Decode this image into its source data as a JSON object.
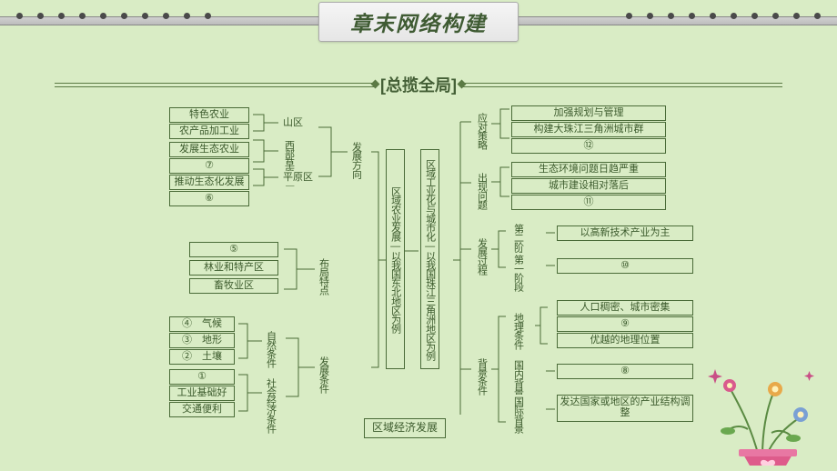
{
  "colors": {
    "bg": "#d9ecc5",
    "line": "#4a6b38",
    "text": "#3b5a2c",
    "title_text": "#3f5b33",
    "header_bar_top": "#d0d0d0",
    "header_bar_bot": "#bcbcbc",
    "dot": "#4a4a4a",
    "titlebox_top": "#f5f5f5",
    "titlebox_bot": "#e6e6e6"
  },
  "header": {
    "title": "章末网络构建",
    "subtitle": "[总揽全局]",
    "dots_per_side": 10
  },
  "center": {
    "bottom": "区域经济发展",
    "left": "区域农业发展—以我国东北地区为例",
    "right": "区域工业化与城市化—以我国珠江三角洲地区为例"
  },
  "left": {
    "l1_dev_dir": "发展方向",
    "l1_layout": "布局特点",
    "l1_dev_cond": "发展条件",
    "regions": {
      "mountain": "山区",
      "west_grass": "西部草原区",
      "plain": "平原区"
    },
    "dev_dir_items": [
      "特色农业",
      "农产品加工业",
      "发展生态农业",
      "⑦",
      "推动生态化发展",
      "⑥"
    ],
    "layout_items": [
      "⑤",
      "林业和特产区",
      "畜牧业区"
    ],
    "cond_cats": {
      "nature": "自然条件",
      "society": "社会经济条件"
    },
    "cond_items": {
      "nature": [
        "④　气候",
        "③　地形",
        "②　土壤"
      ],
      "society": [
        "①",
        "工业基础好",
        "交通便利"
      ]
    }
  },
  "right": {
    "l1_strategy": "应对策略",
    "l1_problem": "出现问题",
    "l1_process": "发展过程",
    "l1_bgcond": "背景条件",
    "strategy_items": [
      "加强规划与管理",
      "构建大珠江三角洲城市群",
      "⑫"
    ],
    "problem_items": [
      "生态环境问题日趋严重",
      "城市建设相对落后",
      "⑪"
    ],
    "process_items": {
      "p2": "第二阶段",
      "p2v": "以高新技术产业为主",
      "p1": "第一阶段",
      "p1v": "⑩"
    },
    "bg_cats": {
      "geo": "地理条件",
      "dom": "国内背景",
      "intl": "国际背景"
    },
    "bg_items": {
      "geo": [
        "人口稠密、城市密集",
        "⑨",
        "优越的地理位置"
      ],
      "dom": [
        "⑧"
      ],
      "intl": [
        "发达国家或地区的产业结构调整"
      ]
    }
  },
  "flower": {
    "pot": "#de5b8b",
    "pot_heart": "#ffd0e0",
    "stem": "#6aa84f",
    "petal1": "#d95a8d",
    "petal2": "#e8a94a",
    "petal3": "#7aa0d4",
    "spark": "#c94f86"
  }
}
